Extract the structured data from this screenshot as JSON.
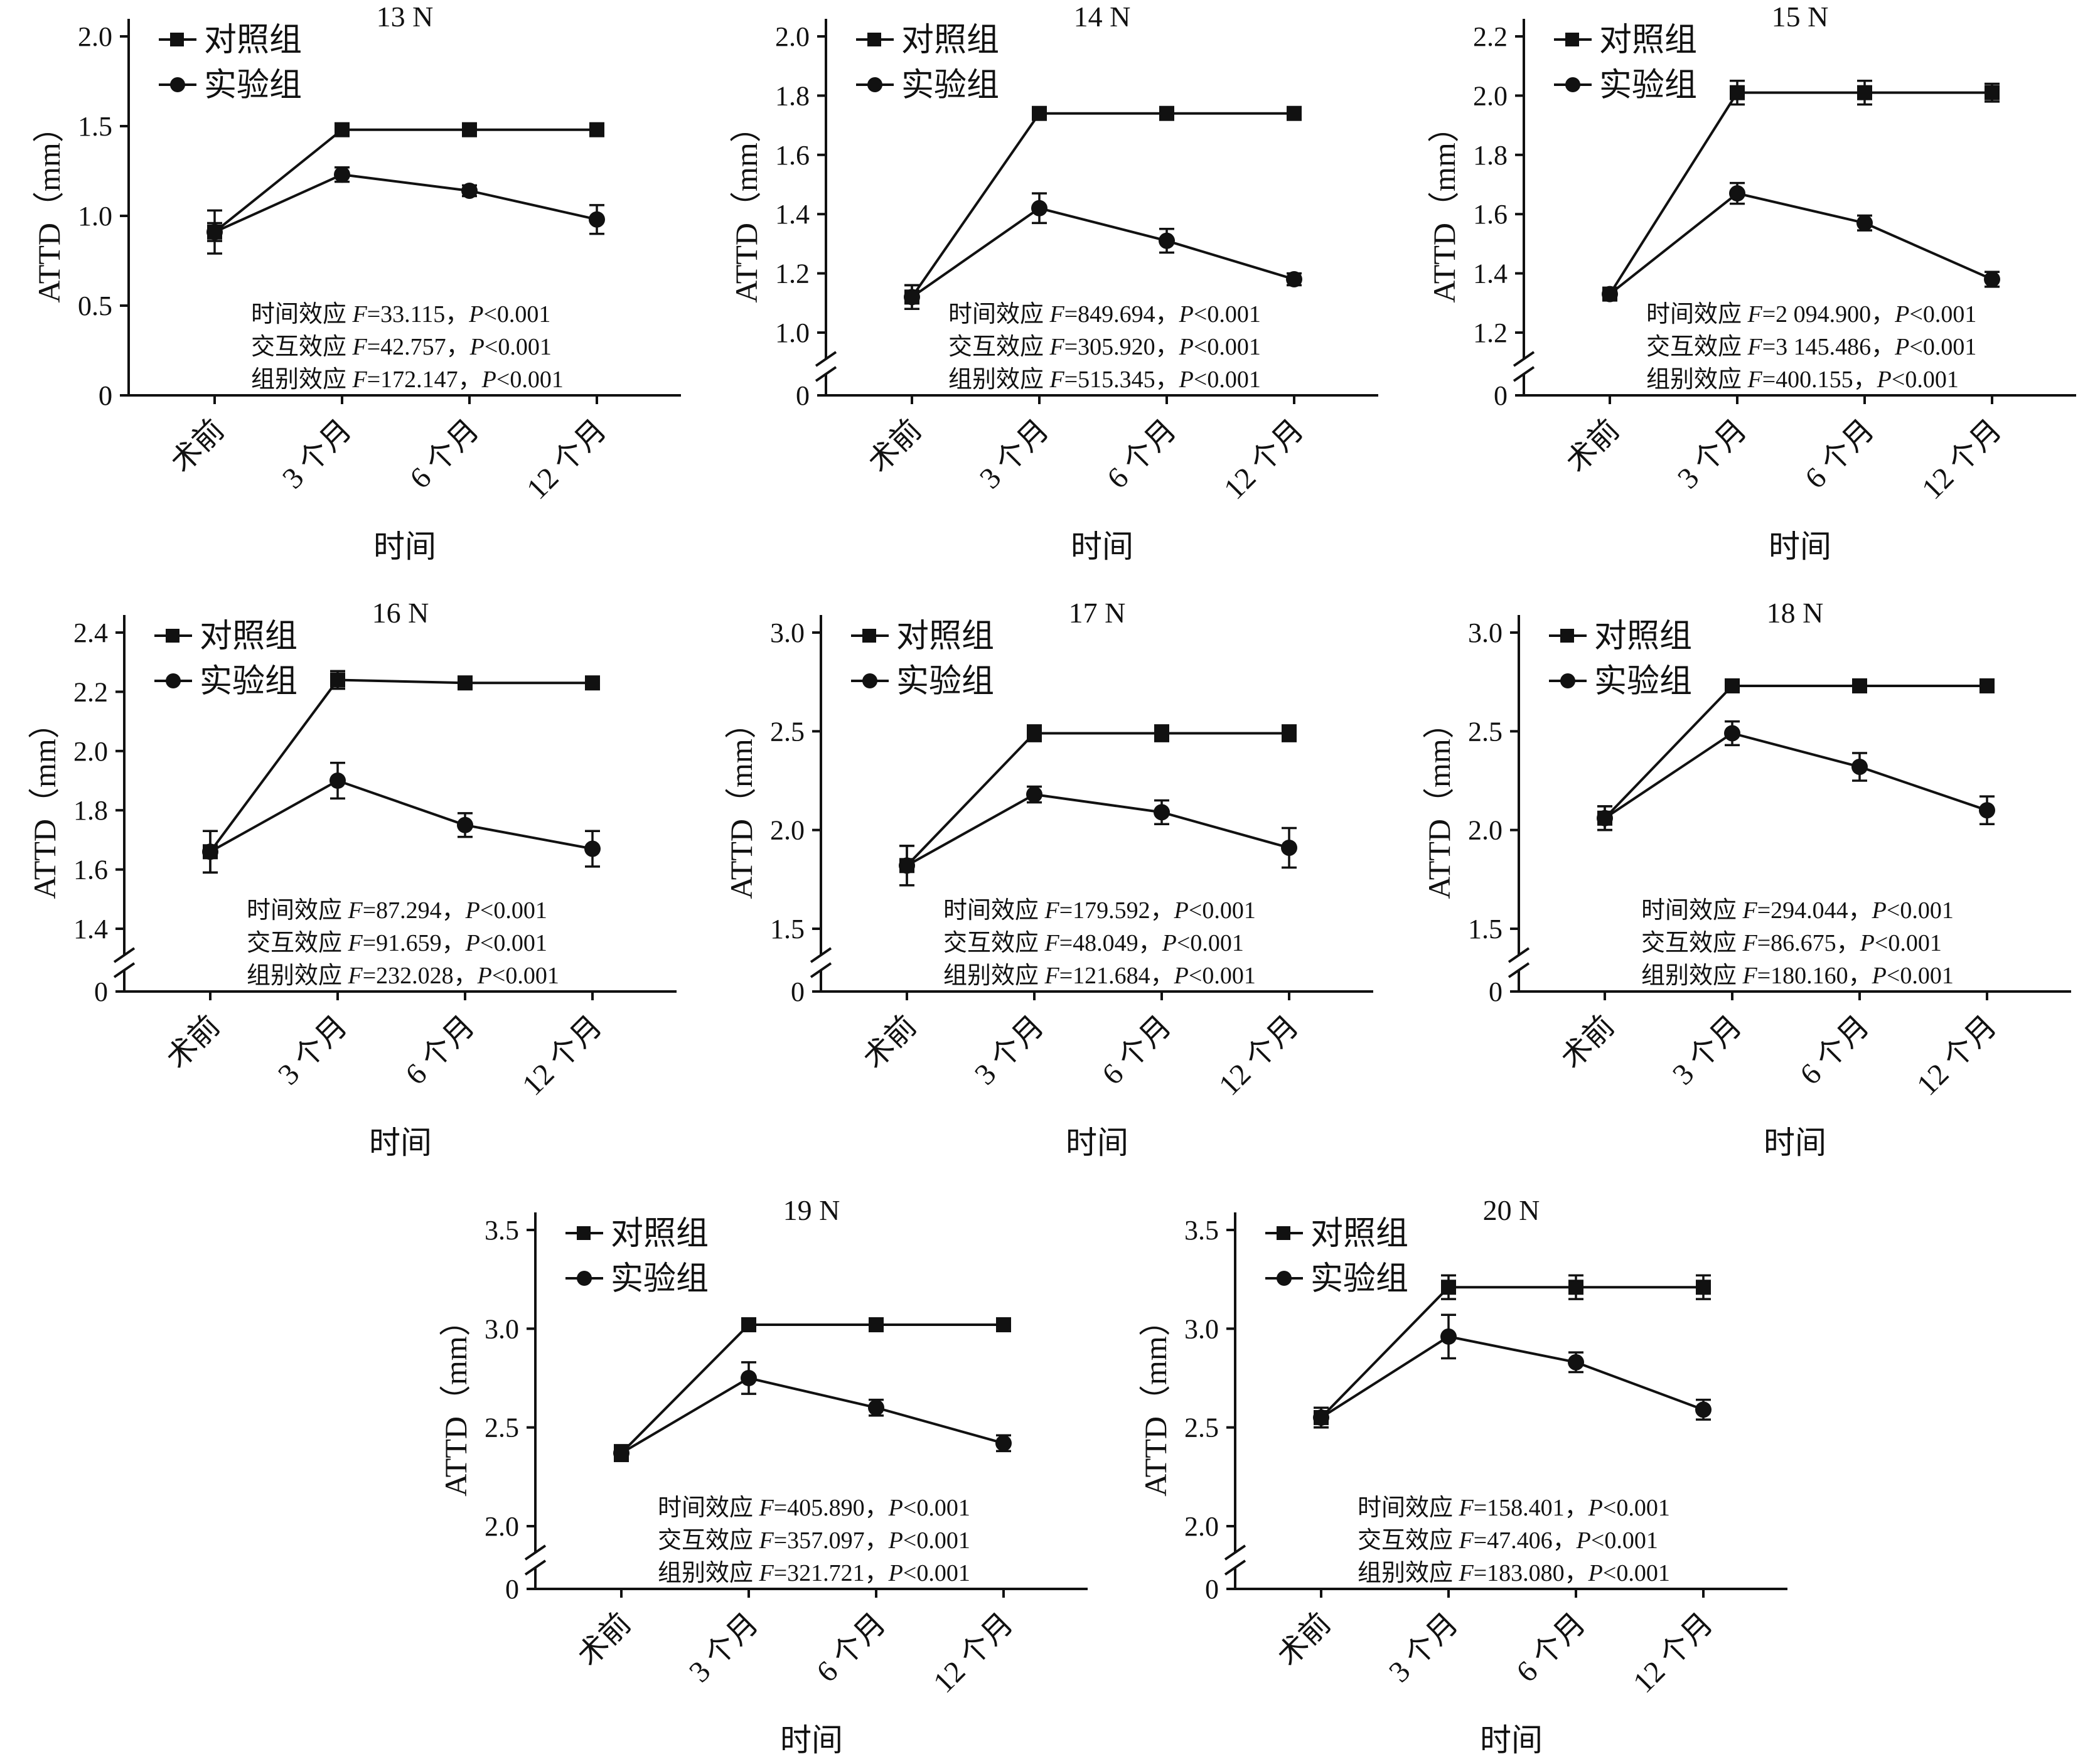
{
  "chart_data": [
    {
      "type": "line",
      "title": "13 N",
      "xlabel": "时间",
      "ylabel": "ATTD（mm）",
      "categories": [
        "术前",
        "3 个月",
        "6 个月",
        "12 个月"
      ],
      "broken_axis": false,
      "ylim": [
        0,
        2.0
      ],
      "ticks": [
        "0",
        "0.5",
        "1.0",
        "1.5",
        "2.0"
      ],
      "tick_values": [
        0,
        0.5,
        1.0,
        1.5,
        2.0
      ],
      "series": [
        {
          "name": "对照组",
          "marker": "square",
          "values": [
            0.91,
            1.48,
            1.48,
            1.48
          ],
          "errors": [
            0.12,
            0.01,
            0.01,
            0.01
          ]
        },
        {
          "name": "实验组",
          "marker": "circle",
          "values": [
            0.91,
            1.23,
            1.14,
            0.98
          ],
          "errors": [
            0.05,
            0.04,
            0.03,
            0.08
          ]
        }
      ],
      "stats": [
        {
          "label": "时间效应",
          "f": "F",
          "rest": "=33.115，",
          "p": "P",
          "prest": "<0.001"
        },
        {
          "label": "交互效应",
          "f": "F",
          "rest": "=42.757，",
          "p": "P",
          "prest": "<0.001"
        },
        {
          "label": "组别效应",
          "f": "F",
          "rest": "=172.147，",
          "p": "P",
          "prest": "<0.001"
        }
      ]
    },
    {
      "type": "line",
      "title": "14 N",
      "xlabel": "时间",
      "ylabel": "ATTD（mm）",
      "categories": [
        "术前",
        "3 个月",
        "6 个月",
        "12 个月"
      ],
      "broken_axis": true,
      "ylim": [
        1.0,
        2.0
      ],
      "ticks": [
        "1.0",
        "1.2",
        "1.4",
        "1.6",
        "1.8",
        "2.0"
      ],
      "tick_values": [
        1.0,
        1.2,
        1.4,
        1.6,
        1.8,
        2.0
      ],
      "series": [
        {
          "name": "对照组",
          "marker": "square",
          "values": [
            1.12,
            1.74,
            1.74,
            1.74
          ],
          "errors": [
            0.04,
            0.005,
            0.005,
            0.005
          ]
        },
        {
          "name": "实验组",
          "marker": "circle",
          "values": [
            1.12,
            1.42,
            1.31,
            1.18
          ],
          "errors": [
            0.04,
            0.05,
            0.04,
            0.02
          ]
        }
      ],
      "stats": [
        {
          "label": "时间效应",
          "f": "F",
          "rest": "=849.694，",
          "p": "P",
          "prest": "<0.001"
        },
        {
          "label": "交互效应",
          "f": "F",
          "rest": "=305.920，",
          "p": "P",
          "prest": "<0.001"
        },
        {
          "label": "组别效应",
          "f": "F",
          "rest": "=515.345，",
          "p": "P",
          "prest": "<0.001"
        }
      ]
    },
    {
      "type": "line",
      "title": "15 N",
      "xlabel": "时间",
      "ylabel": "ATTD（mm）",
      "categories": [
        "术前",
        "3 个月",
        "6 个月",
        "12 个月"
      ],
      "broken_axis": true,
      "ylim": [
        1.2,
        2.2
      ],
      "ticks": [
        "1.2",
        "1.4",
        "1.6",
        "1.8",
        "2.0",
        "2.2"
      ],
      "tick_values": [
        1.2,
        1.4,
        1.6,
        1.8,
        2.0,
        2.2
      ],
      "series": [
        {
          "name": "对照组",
          "marker": "square",
          "values": [
            1.33,
            2.01,
            2.01,
            2.01
          ],
          "errors": [
            0.02,
            0.04,
            0.04,
            0.03
          ]
        },
        {
          "name": "实验组",
          "marker": "circle",
          "values": [
            1.33,
            1.67,
            1.57,
            1.38
          ],
          "errors": [
            0.02,
            0.035,
            0.025,
            0.025
          ]
        }
      ],
      "stats": [
        {
          "label": "时间效应",
          "f": "F",
          "rest": "=2 094.900，",
          "p": "P",
          "prest": "<0.001"
        },
        {
          "label": "交互效应",
          "f": "F",
          "rest": "=3 145.486，",
          "p": "P",
          "prest": "<0.001"
        },
        {
          "label": "组别效应",
          "f": "F",
          "rest": "=400.155，",
          "p": "P",
          "prest": "<0.001"
        }
      ]
    },
    {
      "type": "line",
      "title": "16 N",
      "xlabel": "时间",
      "ylabel": "ATTD（mm）",
      "categories": [
        "术前",
        "3 个月",
        "6 个月",
        "12 个月"
      ],
      "broken_axis": true,
      "ylim": [
        1.4,
        2.4
      ],
      "ticks": [
        "1.4",
        "1.6",
        "1.8",
        "2.0",
        "2.2",
        "2.4"
      ],
      "tick_values": [
        1.4,
        1.6,
        1.8,
        2.0,
        2.2,
        2.4
      ],
      "series": [
        {
          "name": "对照组",
          "marker": "square",
          "values": [
            1.66,
            2.24,
            2.23,
            2.23
          ],
          "errors": [
            0.07,
            0.03,
            0.02,
            0.02
          ]
        },
        {
          "name": "实验组",
          "marker": "circle",
          "values": [
            1.66,
            1.9,
            1.75,
            1.67
          ],
          "errors": [
            0.07,
            0.06,
            0.04,
            0.06
          ]
        }
      ],
      "stats": [
        {
          "label": "时间效应",
          "f": "F",
          "rest": "=87.294，",
          "p": "P",
          "prest": "<0.001"
        },
        {
          "label": "交互效应",
          "f": "F",
          "rest": "=91.659，",
          "p": "P",
          "prest": "<0.001"
        },
        {
          "label": "组别效应",
          "f": "F",
          "rest": "=232.028，",
          "p": "P",
          "prest": "<0.001"
        }
      ]
    },
    {
      "type": "line",
      "title": "17 N",
      "xlabel": "时间",
      "ylabel": "ATTD（mm）",
      "categories": [
        "术前",
        "3 个月",
        "6 个月",
        "12 个月"
      ],
      "broken_axis": true,
      "ylim": [
        1.5,
        3.0
      ],
      "ticks": [
        "1.5",
        "2.0",
        "2.5",
        "3.0"
      ],
      "tick_values": [
        1.5,
        2.0,
        2.5,
        3.0
      ],
      "series": [
        {
          "name": "对照组",
          "marker": "square",
          "values": [
            1.82,
            2.49,
            2.49,
            2.49
          ],
          "errors": [
            0.1,
            0.04,
            0.04,
            0.04
          ]
        },
        {
          "name": "实验组",
          "marker": "circle",
          "values": [
            1.82,
            2.18,
            2.09,
            1.91
          ],
          "errors": [
            0.1,
            0.04,
            0.06,
            0.1
          ]
        }
      ],
      "stats": [
        {
          "label": "时间效应",
          "f": "F",
          "rest": "=179.592，",
          "p": "P",
          "prest": "<0.001"
        },
        {
          "label": "交互效应",
          "f": "F",
          "rest": "=48.049，",
          "p": "P",
          "prest": "<0.001"
        },
        {
          "label": "组别效应",
          "f": "F",
          "rest": "=121.684，",
          "p": "P",
          "prest": "<0.001"
        }
      ]
    },
    {
      "type": "line",
      "title": "18 N",
      "xlabel": "时间",
      "ylabel": "ATTD（mm）",
      "categories": [
        "术前",
        "3 个月",
        "6 个月",
        "12 个月"
      ],
      "broken_axis": true,
      "ylim": [
        1.5,
        3.0
      ],
      "ticks": [
        "1.5",
        "2.0",
        "2.5",
        "3.0"
      ],
      "tick_values": [
        1.5,
        2.0,
        2.5,
        3.0
      ],
      "series": [
        {
          "name": "对照组",
          "marker": "square",
          "values": [
            2.06,
            2.73,
            2.73,
            2.73
          ],
          "errors": [
            0.06,
            0.01,
            0.01,
            0.01
          ]
        },
        {
          "name": "实验组",
          "marker": "circle",
          "values": [
            2.06,
            2.49,
            2.32,
            2.1
          ],
          "errors": [
            0.06,
            0.06,
            0.07,
            0.07
          ]
        }
      ],
      "stats": [
        {
          "label": "时间效应",
          "f": "F",
          "rest": "=294.044，",
          "p": "P",
          "prest": "<0.001"
        },
        {
          "label": "交互效应",
          "f": "F",
          "rest": "=86.675，",
          "p": "P",
          "prest": "<0.001"
        },
        {
          "label": "组别效应",
          "f": "F",
          "rest": "=180.160，",
          "p": "P",
          "prest": "<0.001"
        }
      ]
    },
    {
      "type": "line",
      "title": "19 N",
      "xlabel": "时间",
      "ylabel": "ATTD（mm）",
      "categories": [
        "术前",
        "3 个月",
        "6 个月",
        "12 个月"
      ],
      "broken_axis": true,
      "ylim": [
        2.0,
        3.5
      ],
      "ticks": [
        "2.0",
        "2.5",
        "3.0",
        "3.5"
      ],
      "tick_values": [
        2.0,
        2.5,
        3.0,
        3.5
      ],
      "series": [
        {
          "name": "对照组",
          "marker": "square",
          "values": [
            2.37,
            3.02,
            3.02,
            3.02
          ],
          "errors": [
            0.04,
            0.01,
            0.01,
            0.01
          ]
        },
        {
          "name": "实验组",
          "marker": "circle",
          "values": [
            2.37,
            2.75,
            2.6,
            2.42
          ],
          "errors": [
            0.04,
            0.08,
            0.04,
            0.04
          ]
        }
      ],
      "stats": [
        {
          "label": "时间效应",
          "f": "F",
          "rest": "=405.890，",
          "p": "P",
          "prest": "<0.001"
        },
        {
          "label": "交互效应",
          "f": "F",
          "rest": "=357.097，",
          "p": "P",
          "prest": "<0.001"
        },
        {
          "label": "组别效应",
          "f": "F",
          "rest": "=321.721，",
          "p": "P",
          "prest": "<0.001"
        }
      ]
    },
    {
      "type": "line",
      "title": "20 N",
      "xlabel": "时间",
      "ylabel": "ATTD（mm）",
      "categories": [
        "术前",
        "3 个月",
        "6 个月",
        "12 个月"
      ],
      "broken_axis": true,
      "ylim": [
        2.0,
        3.5
      ],
      "ticks": [
        "2.0",
        "2.5",
        "3.0",
        "3.5"
      ],
      "tick_values": [
        2.0,
        2.5,
        3.0,
        3.5
      ],
      "series": [
        {
          "name": "对照组",
          "marker": "square",
          "values": [
            2.55,
            3.21,
            3.21,
            3.21
          ],
          "errors": [
            0.05,
            0.06,
            0.06,
            0.06
          ]
        },
        {
          "name": "实验组",
          "marker": "circle",
          "values": [
            2.55,
            2.96,
            2.83,
            2.59
          ],
          "errors": [
            0.05,
            0.11,
            0.05,
            0.05
          ]
        }
      ],
      "stats": [
        {
          "label": "时间效应",
          "f": "F",
          "rest": "=158.401，",
          "p": "P",
          "prest": "<0.001"
        },
        {
          "label": "交互效应",
          "f": "F",
          "rest": "=47.406，",
          "p": "P",
          "prest": "<0.001"
        },
        {
          "label": "组别效应",
          "f": "F",
          "rest": "=183.080，",
          "p": "P",
          "prest": "<0.001"
        }
      ]
    }
  ]
}
